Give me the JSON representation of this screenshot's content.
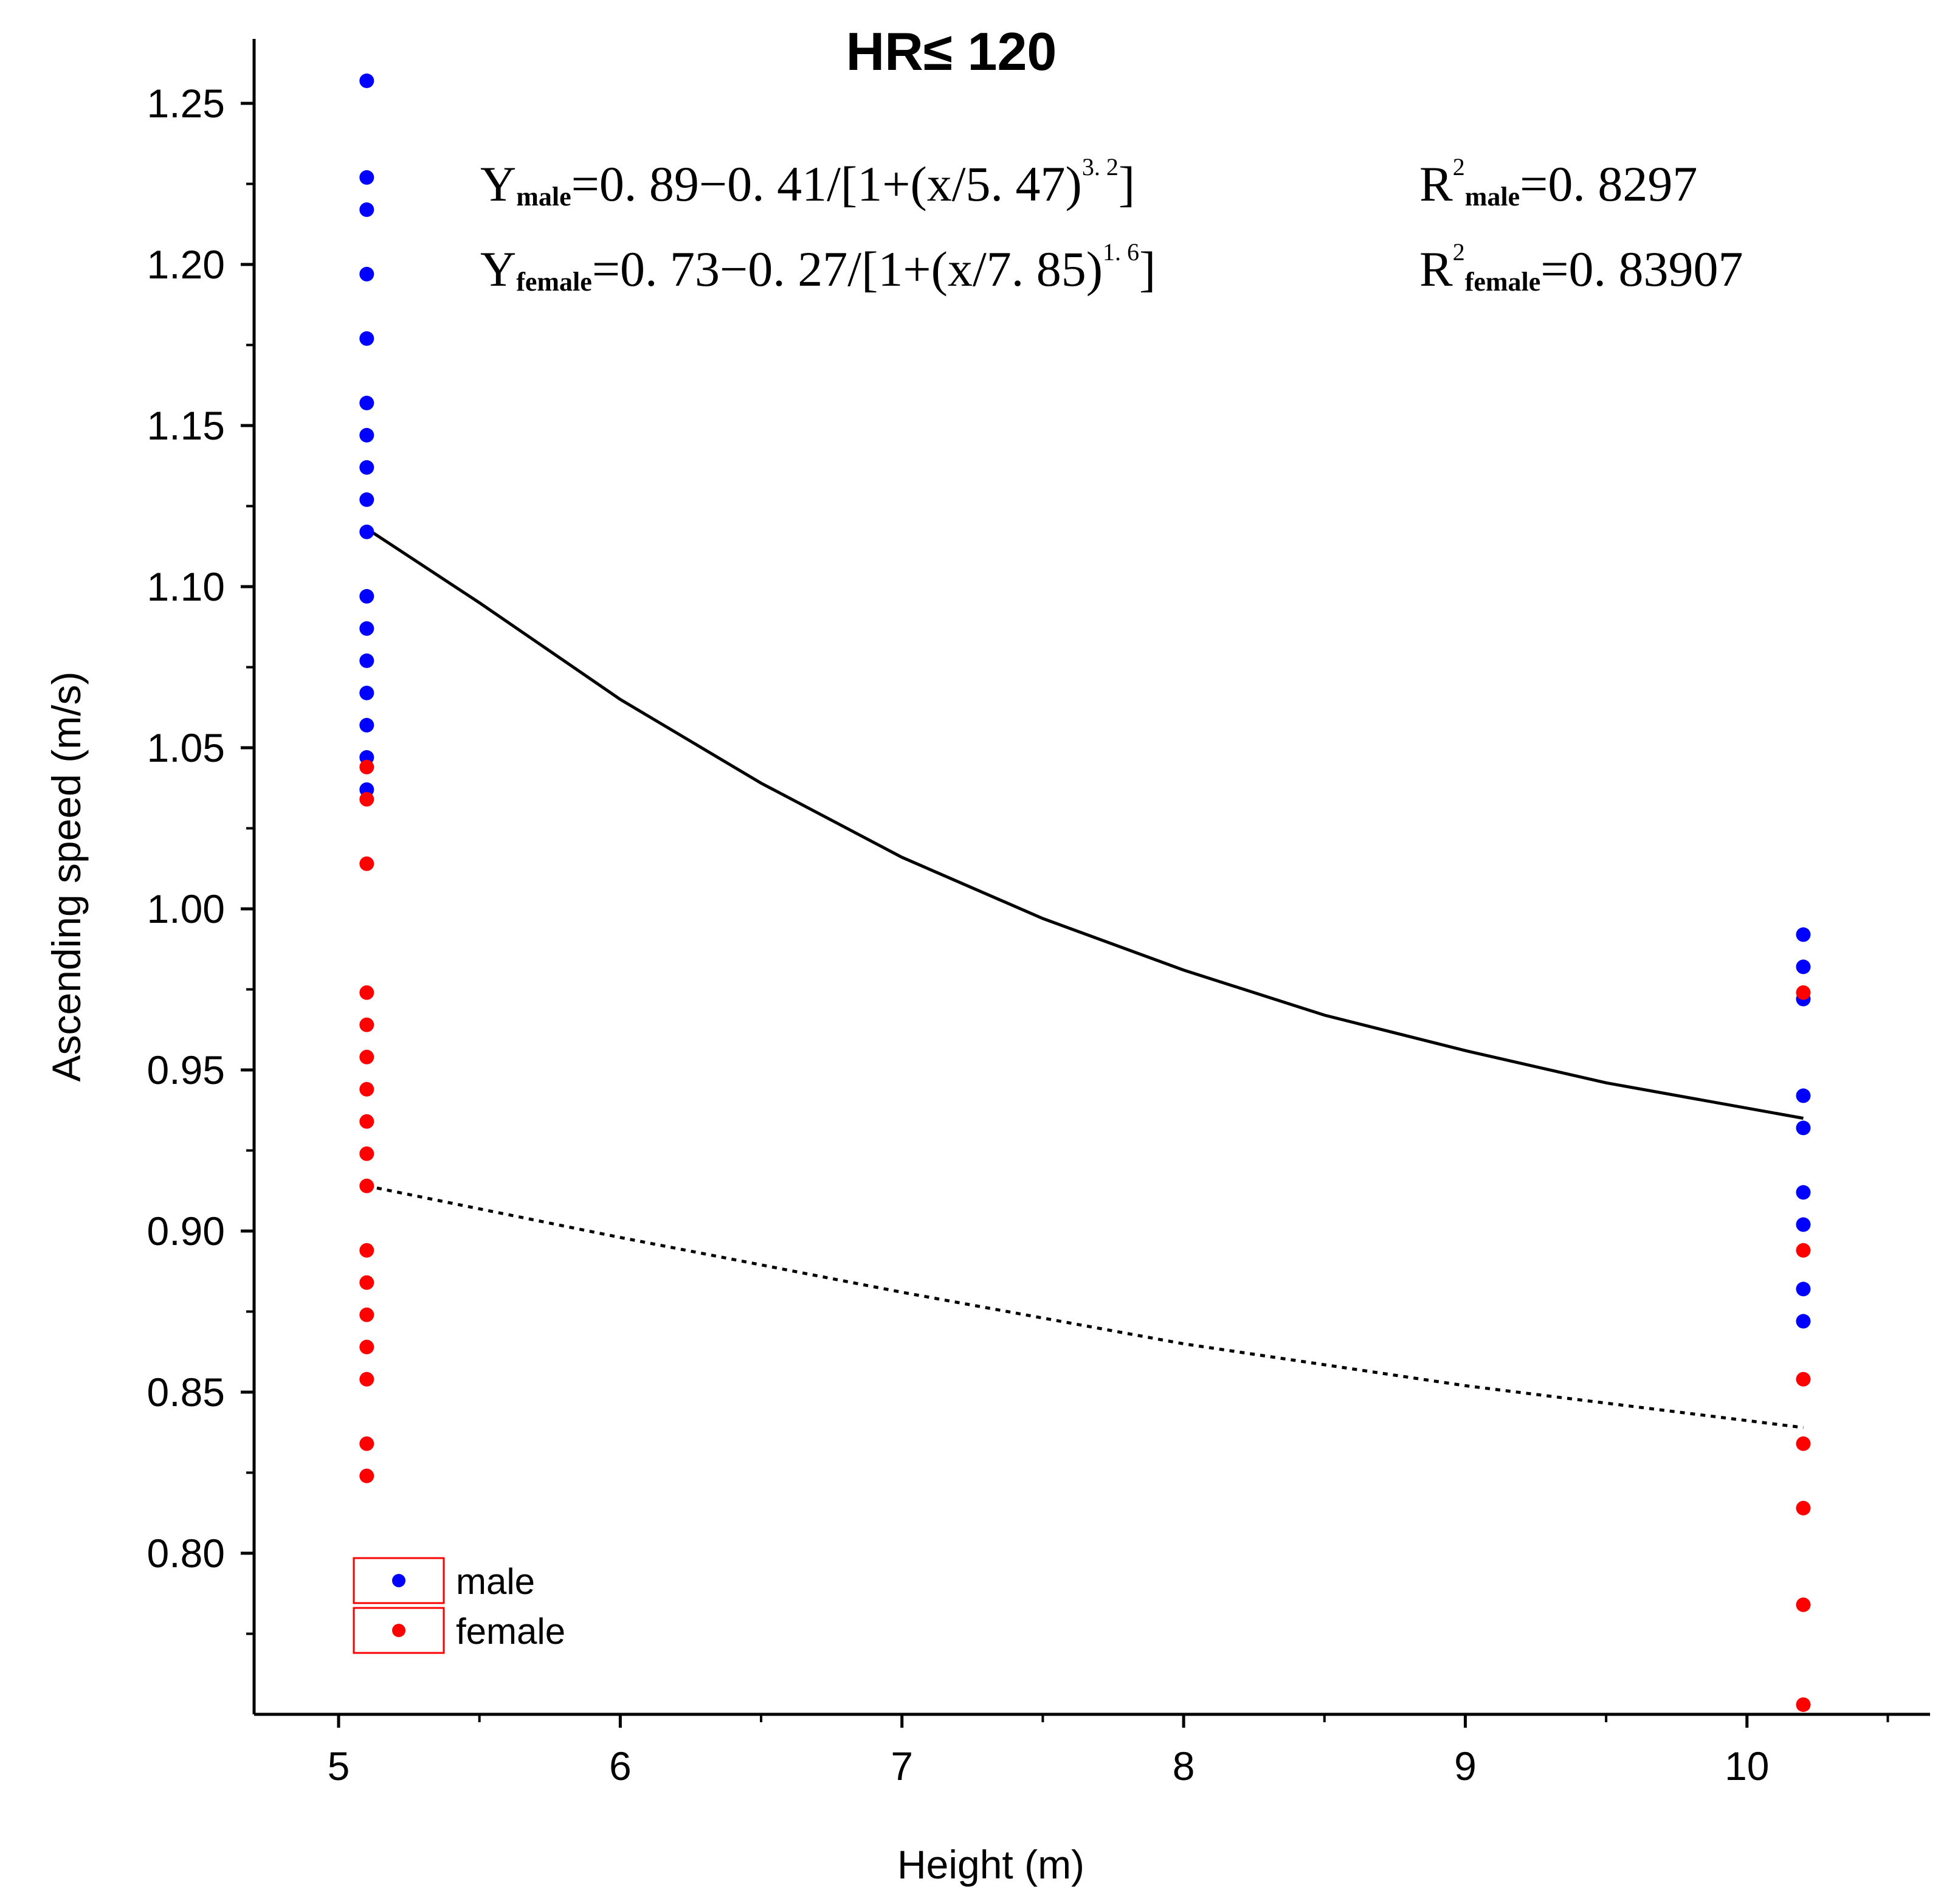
{
  "chart_data": {
    "type": "scatter",
    "title": "HR≤ 120",
    "xlabel": "Height (m)",
    "ylabel": "Ascending speed (m/s)",
    "xlim": [
      4.7,
      10.65
    ],
    "ylim": [
      0.75,
      1.27
    ],
    "xticks": [
      5,
      6,
      7,
      8,
      9,
      10
    ],
    "xtick_labels": [
      "5",
      "6",
      "7",
      "8",
      "9",
      "10"
    ],
    "yticks": [
      0.8,
      0.85,
      0.9,
      0.95,
      1.0,
      1.05,
      1.1,
      1.15,
      1.2,
      1.25
    ],
    "ytick_labels": [
      "0.80",
      "0.85",
      "0.90",
      "0.95",
      "1.00",
      "1.05",
      "1.10",
      "1.15",
      "1.20",
      "1.25"
    ],
    "legend": {
      "position": "bottom-left",
      "entries": [
        "male",
        "female"
      ]
    },
    "colors": {
      "male": "#0000ff",
      "female": "#ff0000",
      "fit": "#000000",
      "legend_box": "#ff0000"
    },
    "series": [
      {
        "name": "male",
        "points": [
          [
            5.1,
            1.257
          ],
          [
            5.1,
            1.227
          ],
          [
            5.1,
            1.217
          ],
          [
            5.1,
            1.197
          ],
          [
            5.1,
            1.177
          ],
          [
            5.1,
            1.157
          ],
          [
            5.1,
            1.147
          ],
          [
            5.1,
            1.137
          ],
          [
            5.1,
            1.127
          ],
          [
            5.1,
            1.117
          ],
          [
            5.1,
            1.097
          ],
          [
            5.1,
            1.087
          ],
          [
            5.1,
            1.077
          ],
          [
            5.1,
            1.067
          ],
          [
            5.1,
            1.057
          ],
          [
            5.1,
            1.047
          ],
          [
            5.1,
            1.037
          ],
          [
            10.2,
            0.992
          ],
          [
            10.2,
            0.982
          ],
          [
            10.2,
            0.972
          ],
          [
            10.2,
            0.942
          ],
          [
            10.2,
            0.932
          ],
          [
            10.2,
            0.912
          ],
          [
            10.2,
            0.902
          ],
          [
            10.2,
            0.882
          ],
          [
            10.2,
            0.872
          ]
        ]
      },
      {
        "name": "female",
        "points": [
          [
            5.1,
            1.044
          ],
          [
            5.1,
            1.034
          ],
          [
            5.1,
            1.014
          ],
          [
            5.1,
            0.974
          ],
          [
            5.1,
            0.964
          ],
          [
            5.1,
            0.954
          ],
          [
            5.1,
            0.944
          ],
          [
            5.1,
            0.934
          ],
          [
            5.1,
            0.924
          ],
          [
            5.1,
            0.914
          ],
          [
            5.1,
            0.894
          ],
          [
            5.1,
            0.884
          ],
          [
            5.1,
            0.874
          ],
          [
            5.1,
            0.864
          ],
          [
            5.1,
            0.854
          ],
          [
            5.1,
            0.834
          ],
          [
            5.1,
            0.824
          ],
          [
            10.2,
            0.974
          ],
          [
            10.2,
            0.894
          ],
          [
            10.2,
            0.854
          ],
          [
            10.2,
            0.834
          ],
          [
            10.2,
            0.814
          ],
          [
            10.2,
            0.784
          ],
          [
            10.2,
            0.753
          ]
        ]
      }
    ],
    "fits": [
      {
        "name": "male fit",
        "style": "solid",
        "x": [
          5.1,
          5.5,
          6.0,
          6.5,
          7.0,
          7.5,
          8.0,
          8.5,
          9.0,
          9.5,
          10.2
        ],
        "y": [
          1.118,
          1.095,
          1.065,
          1.039,
          1.016,
          0.997,
          0.981,
          0.967,
          0.956,
          0.946,
          0.935
        ]
      },
      {
        "name": "female fit",
        "style": "dotted",
        "x": [
          5.1,
          6.0,
          7.0,
          8.0,
          9.0,
          10.2
        ],
        "y": [
          0.914,
          0.898,
          0.881,
          0.865,
          0.852,
          0.839
        ]
      }
    ],
    "annotations": {
      "eq_male": {
        "lead": "Y",
        "sub": "male",
        "body": "=0. 89−0. 41/[1+(x/5. 47)",
        "sup": "3. 2",
        "tail": "]"
      },
      "eq_female": {
        "lead": "Y",
        "sub": "female",
        "body": "=0. 73−0. 27/[1+(x/7. 85)",
        "sup": "1. 6",
        "tail": "]"
      },
      "r2_male": {
        "lead": "R",
        "sup": "2",
        "sub": "male",
        "body": "=0. 8297"
      },
      "r2_female": {
        "lead": "R",
        "sup": "2",
        "sub": "female",
        "body": "=0. 83907"
      }
    }
  }
}
